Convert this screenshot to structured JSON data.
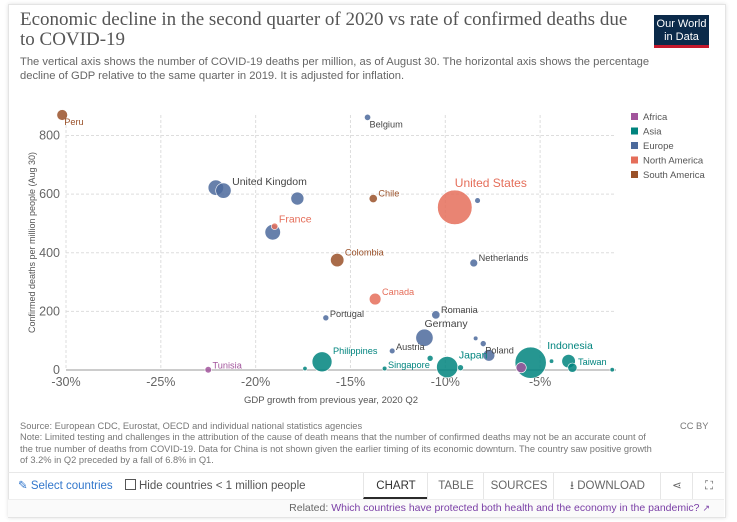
{
  "header": {
    "title": "Economic decline in the second quarter of 2020 vs rate of confirmed deaths due to COVID-19",
    "subtitle": "The vertical axis shows the number of COVID-19 deaths per million, as of August 30. The horizontal axis shows the percentage decline of GDP relative to the same quarter in 2019. It is adjusted for inflation.",
    "logo_line1": "Our World",
    "logo_line2": "in Data"
  },
  "footer": {
    "source": "Source: European CDC, Eurostat, OECD and individual national statistics agencies",
    "note": "Note: Limited testing and challenges in the attribution of the cause of death means that the number of confirmed deaths may not be an accurate count of the true number of deaths from COVID-19. Data for China is not shown given the earlier timing of its economic downturn. The country saw positive growth of 3.2% in Q2 preceded by a fall of 6.8% in Q1.",
    "license": "CC BY"
  },
  "controls": {
    "select_label": "Select countries",
    "hide_label": "Hide countries < 1 million people",
    "tabs": [
      "CHART",
      "TABLE",
      "SOURCES",
      "DOWNLOAD"
    ],
    "active_tab": "CHART"
  },
  "related": {
    "prefix": "Related:",
    "link": "Which countries have protected both health and the economy in the pandemic?"
  },
  "colors": {
    "Africa": "#a2559c",
    "Asia": "#00847e",
    "Europe": "#4c6a9c",
    "North America": "#e56e5a",
    "South America": "#9a5129"
  },
  "chart_data": {
    "type": "scatter",
    "xlabel": "GDP growth from previous year, 2020 Q2",
    "ylabel": "Confirmed deaths per million people (Aug 30)",
    "xlim": [
      -30,
      -1
    ],
    "ylim": [
      0,
      870
    ],
    "xticks": [
      -30,
      -25,
      -20,
      -15,
      -10,
      -5
    ],
    "xtick_labels": [
      "-30%",
      "-25%",
      "-20%",
      "-15%",
      "-10%",
      "-5%"
    ],
    "yticks": [
      0,
      200,
      400,
      600,
      800
    ],
    "grid": true,
    "legend": [
      "Africa",
      "Asia",
      "Europe",
      "North America",
      "South America"
    ],
    "legend_position": "top-right",
    "points": [
      {
        "x": -30.2,
        "y": 870,
        "region": "South America",
        "size": 32,
        "label": "Peru",
        "labelSide": "right-low"
      },
      {
        "x": -14.1,
        "y": 862,
        "region": "Europe",
        "size": 11,
        "label": "Belgium",
        "labelSide": "right-low"
      },
      {
        "x": -22.1,
        "y": 622,
        "region": "Europe",
        "size": 66,
        "label": ""
      },
      {
        "x": -21.7,
        "y": 612,
        "region": "Europe",
        "size": 66,
        "label": "United Kingdom",
        "labelSide": "right-up",
        "bold": true
      },
      {
        "x": -17.8,
        "y": 585,
        "region": "Europe",
        "size": 47,
        "label": ""
      },
      {
        "x": -13.8,
        "y": 585,
        "region": "South America",
        "size": 19,
        "label": "Chile",
        "labelSide": "right-up"
      },
      {
        "x": -9.5,
        "y": 555,
        "region": "North America",
        "size": 331,
        "label": "United States",
        "labelSide": "right-up",
        "big": true
      },
      {
        "x": -8.3,
        "y": 578,
        "region": "Europe",
        "size": 9,
        "label": ""
      },
      {
        "x": -19.0,
        "y": 490,
        "region": "North America",
        "size": 12,
        "label": "France",
        "labelSide": "right-up-fr",
        "bold": true
      },
      {
        "x": -19.1,
        "y": 470,
        "region": "Europe",
        "size": 67,
        "label": ""
      },
      {
        "x": -15.7,
        "y": 375,
        "region": "South America",
        "size": 50,
        "label": "Colombia",
        "labelSide": "right-up"
      },
      {
        "x": -8.5,
        "y": 365,
        "region": "Europe",
        "size": 17,
        "label": "Netherlands",
        "labelSide": "right-up"
      },
      {
        "x": -13.7,
        "y": 242,
        "region": "North America",
        "size": 38,
        "label": "Canada",
        "labelSide": "right-up"
      },
      {
        "x": -10.5,
        "y": 188,
        "region": "Europe",
        "size": 19,
        "label": "Romania",
        "labelSide": "right-up"
      },
      {
        "x": -16.3,
        "y": 178,
        "region": "Europe",
        "size": 10,
        "label": "Portugal",
        "labelSide": "right-up"
      },
      {
        "x": -11.1,
        "y": 110,
        "region": "Europe",
        "size": 83,
        "label": "Germany",
        "labelSide": "up",
        "bold": true
      },
      {
        "x": -12.8,
        "y": 65,
        "region": "Europe",
        "size": 9,
        "label": "Austria",
        "labelSide": "right-up"
      },
      {
        "x": -8.4,
        "y": 108,
        "region": "Europe",
        "size": 6,
        "label": ""
      },
      {
        "x": -8.0,
        "y": 90,
        "region": "Europe",
        "size": 10,
        "label": "Poland",
        "labelSide": "right-low"
      },
      {
        "x": -7.7,
        "y": 50,
        "region": "Europe",
        "size": 38,
        "label": ""
      },
      {
        "x": -16.5,
        "y": 28,
        "region": "Asia",
        "size": 110,
        "label": "Philippines",
        "labelSide": "right-up"
      },
      {
        "x": -17.4,
        "y": 5,
        "region": "Asia",
        "size": 0.5,
        "label": ""
      },
      {
        "x": -13.2,
        "y": 5,
        "region": "Asia",
        "size": 6,
        "label": "Singapore",
        "labelSide": "right-up"
      },
      {
        "x": -10.8,
        "y": 40,
        "region": "Asia",
        "size": 10,
        "label": ""
      },
      {
        "x": -9.9,
        "y": 10,
        "region": "Asia",
        "size": 126,
        "label": "Japan",
        "labelSide": "right-up",
        "bold": true
      },
      {
        "x": -9.2,
        "y": 8,
        "region": "Asia",
        "size": 10,
        "label": ""
      },
      {
        "x": -5.5,
        "y": 25,
        "region": "Asia",
        "size": 270,
        "label": "Indonesia",
        "labelSide": "right-up",
        "bold": true
      },
      {
        "x": -6.0,
        "y": 8,
        "region": "Africa",
        "size": 29,
        "label": ""
      },
      {
        "x": -3.5,
        "y": 30,
        "region": "Asia",
        "size": 51,
        "label": ""
      },
      {
        "x": -3.3,
        "y": 8,
        "region": "Asia",
        "size": 24,
        "label": "Taiwan",
        "labelSide": "right-up"
      },
      {
        "x": -4.4,
        "y": 30,
        "region": "Asia",
        "size": 5,
        "label": ""
      },
      {
        "x": -1.2,
        "y": 1,
        "region": "Asia",
        "size": 1,
        "label": ""
      },
      {
        "x": -22.5,
        "y": 1,
        "region": "Africa",
        "size": 12,
        "label": "Tunisia",
        "labelSide": "right-up"
      }
    ]
  }
}
